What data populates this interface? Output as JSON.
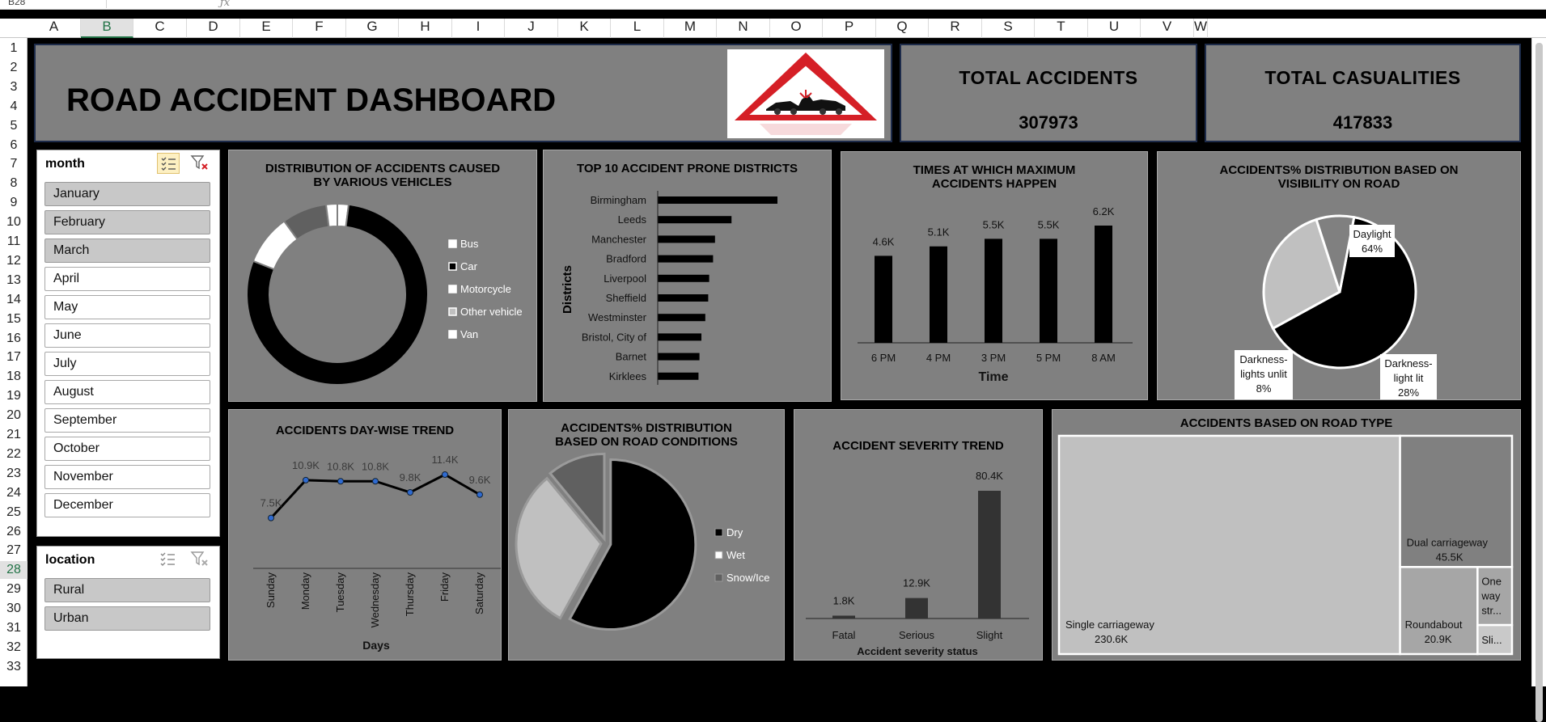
{
  "excel": {
    "namebox": "B28",
    "columns": [
      "A",
      "B",
      "C",
      "D",
      "E",
      "F",
      "G",
      "H",
      "I",
      "J",
      "K",
      "L",
      "M",
      "N",
      "O",
      "P",
      "Q",
      "R",
      "S",
      "T",
      "U",
      "V",
      "W"
    ],
    "active_column": "B",
    "rows": [
      "1",
      "2",
      "3",
      "4",
      "5",
      "6",
      "7",
      "8",
      "9",
      "10",
      "11",
      "12",
      "13",
      "14",
      "15",
      "16",
      "17",
      "18",
      "19",
      "20",
      "21",
      "22",
      "23",
      "24",
      "25",
      "26",
      "27",
      "28",
      "29",
      "30",
      "31",
      "32",
      "33"
    ],
    "active_row": "28"
  },
  "header": {
    "title": "ROAD ACCIDENT DASHBOARD",
    "kpi_accidents_label": "TOTAL  ACCIDENTS",
    "kpi_accidents_value": "307973",
    "kpi_casualties_label": "TOTAL  CASUALITIES",
    "kpi_casualties_value": "417833"
  },
  "slicer_month": {
    "title": "month",
    "items": [
      "January",
      "February",
      "March",
      "April",
      "May",
      "June",
      "July",
      "August",
      "September",
      "October",
      "November",
      "December"
    ],
    "selected": [
      true,
      true,
      true,
      false,
      false,
      false,
      false,
      false,
      false,
      false,
      false,
      false
    ]
  },
  "slicer_location": {
    "title": "location",
    "items": [
      "Rural",
      "Urban"
    ],
    "selected": [
      true,
      true
    ]
  },
  "colors": {
    "panel": "#808080",
    "black": "#000000",
    "white": "#ffffff",
    "light_gray": "#c0c0c0",
    "dark_gray": "#606060",
    "sign_red": "#d51f26"
  },
  "chart_data": [
    {
      "id": "vehicles",
      "type": "pie",
      "title": "DISTRIBUTION OF ACCIDENTS CAUSED BY VARIOUS VEHICLES",
      "categories": [
        "Bus",
        "Car",
        "Motorcycle",
        "Other vehicle",
        "Van"
      ],
      "values": [
        2,
        79,
        9,
        8,
        2
      ],
      "legend": "right"
    },
    {
      "id": "districts",
      "type": "bar",
      "title": "TOP 10 ACCIDENT PRONE DISTRICTS",
      "ylabel": "Districts",
      "categories": [
        "Birmingham",
        "Leeds",
        "Manchester",
        "Bradford",
        "Liverpool",
        "Sheffield",
        "Westminster",
        "Bristol, City of",
        "Barnet",
        "Kirklees"
      ],
      "values": [
        6165,
        3800,
        2950,
        2850,
        2650,
        2600,
        2450,
        2250,
        2150,
        2100
      ]
    },
    {
      "id": "times",
      "type": "bar",
      "title": "TIMES AT WHICH MAXIMUM ACCIDENTS HAPPEN",
      "xlabel": "Time",
      "categories": [
        "6 PM",
        "4 PM",
        "3 PM",
        "5 PM",
        "8 AM"
      ],
      "values": [
        4600,
        5100,
        5500,
        5500,
        6200
      ],
      "data_labels": [
        "4.6K",
        "5.1K",
        "5.5K",
        "5.5K",
        "6.2K"
      ]
    },
    {
      "id": "visibility",
      "type": "pie",
      "title": "ACCIDENTS% DISTRIBUTION BASED ON VISIBILITY ON ROAD",
      "categories": [
        "Daylight",
        "Darkness- lights lit",
        "Darkness- lights unlit"
      ],
      "label_lines": [
        [
          "Daylight",
          "64%"
        ],
        [
          "Darkness-",
          "light lit",
          "28%"
        ],
        [
          "Darkness-",
          "lights unlit",
          "8%"
        ]
      ],
      "values": [
        64,
        28,
        8
      ]
    },
    {
      "id": "daywise",
      "type": "line",
      "title": "ACCIDENTS DAY-WISE TREND",
      "xlabel": "Days",
      "categories": [
        "Sunday",
        "Monday",
        "Tuesday",
        "Wednesday",
        "Thursday",
        "Friday",
        "Saturday"
      ],
      "values": [
        7500,
        10900,
        10800,
        10800,
        9800,
        11400,
        9600
      ],
      "data_labels": [
        "7.5K",
        "10.9K",
        "10.8K",
        "10.8K",
        "9.8K",
        "11.4K",
        "9.6K"
      ]
    },
    {
      "id": "road_conditions",
      "type": "pie",
      "title": "ACCIDENTS% DISTRIBUTION BASED ON ROAD CONDITIONS",
      "categories": [
        "Dry",
        "Wet",
        "Snow/Ice"
      ],
      "values": [
        58,
        31,
        11
      ],
      "legend": "right"
    },
    {
      "id": "severity",
      "type": "bar",
      "title": "ACCIDENT SEVERITY TREND",
      "xlabel": "Accident severity status",
      "categories": [
        "Fatal",
        "Serious",
        "Slight"
      ],
      "values": [
        1800,
        12900,
        80400
      ],
      "data_labels": [
        "1.8K",
        "12.9K",
        "80.4K"
      ]
    },
    {
      "id": "road_type",
      "type": "treemap",
      "title": "ACCIDENTS BASED ON ROAD TYPE",
      "categories": [
        "Single carriageway",
        "Dual carriageway",
        "Roundabout",
        "One way str...",
        "Sli..."
      ],
      "values": [
        230600,
        45500,
        20900,
        6200,
        3100
      ],
      "data_labels": [
        "230.6K",
        "45.5K",
        "20.9K",
        "",
        ""
      ]
    }
  ]
}
